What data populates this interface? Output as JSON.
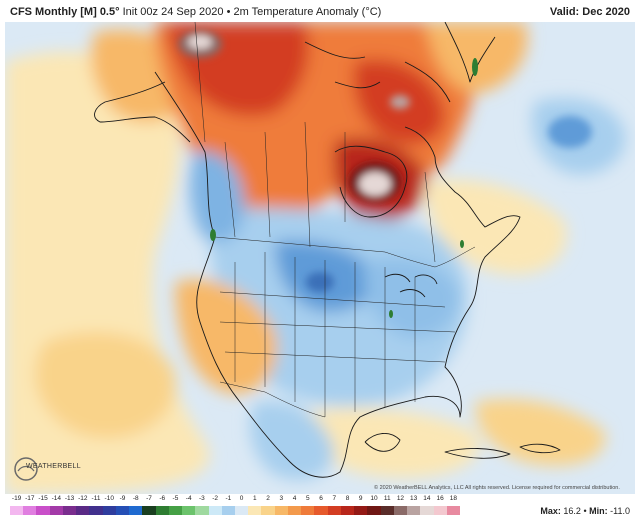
{
  "header": {
    "model": "CFS Monthly [M] 0.5°",
    "init": "Init 00z 24 Sep 2020",
    "bullet": "•",
    "field": "2m Temperature Anomaly (°C)",
    "valid_label": "Valid:",
    "valid_value": "Dec 2020"
  },
  "watermark": {
    "logo_text": "WEATHERBELL",
    "copyright": "© 2020 WeatherBELL Analytics, LLC All rights reserved. License required for commercial distribution."
  },
  "legend": {
    "ticks": [
      "-19",
      "-17",
      "-15",
      "-14",
      "-13",
      "-12",
      "-11",
      "-10",
      "-9",
      "-8",
      "-7",
      "-6",
      "-5",
      "-4",
      "-3",
      "-2",
      "-1",
      "0",
      "1",
      "2",
      "3",
      "4",
      "5",
      "6",
      "7",
      "8",
      "9",
      "10",
      "11",
      "12",
      "13",
      "14",
      "16",
      "18"
    ],
    "colors": [
      "#f3b7ef",
      "#e07ee0",
      "#c94fc9",
      "#a33aa8",
      "#7a2d8e",
      "#5a2a86",
      "#41308d",
      "#2f3d9e",
      "#254fb5",
      "#1f6ad0",
      "#1a3f20",
      "#2e7d32",
      "#45a045",
      "#6cc36c",
      "#9fd99f",
      "#cde9f7",
      "#a7cfee",
      "#dbe9f5",
      "#fbe7b5",
      "#f9d38a",
      "#f7b867",
      "#f39a4c",
      "#ef7b3a",
      "#e65a2c",
      "#d33d22",
      "#b8261b",
      "#941a16",
      "#701714",
      "#5a2d2a",
      "#8b6b68",
      "#b9a3a1",
      "#e5d8d6",
      "#f3c8cf",
      "#e88aa0"
    ]
  },
  "stats": {
    "max_label": "Max:",
    "max_value": "16.2",
    "sep": "•",
    "min_label": "Min:",
    "min_value": "-11.0"
  }
}
